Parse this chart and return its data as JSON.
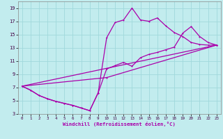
{
  "xlabel": "Windchill (Refroidissement éolien,°C)",
  "xlim": [
    -0.5,
    23.5
  ],
  "ylim": [
    3,
    20
  ],
  "xticks": [
    0,
    1,
    2,
    3,
    4,
    5,
    6,
    7,
    8,
    9,
    10,
    11,
    12,
    13,
    14,
    15,
    16,
    17,
    18,
    19,
    20,
    21,
    22,
    23
  ],
  "yticks": [
    3,
    5,
    7,
    9,
    11,
    13,
    15,
    17,
    19
  ],
  "bg_color": "#c2ecee",
  "grid_color": "#a0d8dc",
  "line_color": "#aa00aa",
  "line1_x": [
    0,
    1,
    2,
    3,
    4,
    5,
    6,
    7,
    8,
    9,
    10,
    11,
    12,
    13,
    14,
    15,
    16,
    17,
    18,
    19,
    20,
    21,
    22,
    23
  ],
  "line1_y": [
    7.2,
    6.6,
    5.8,
    5.3,
    4.9,
    4.6,
    4.3,
    3.9,
    3.5,
    6.2,
    14.5,
    16.8,
    17.2,
    19.0,
    17.2,
    17.0,
    17.5,
    16.3,
    15.3,
    14.7,
    13.8,
    13.5,
    13.4,
    13.4
  ],
  "line2_x": [
    0,
    1,
    2,
    3,
    4,
    5,
    6,
    7,
    8,
    9,
    10,
    11,
    12,
    13,
    14,
    15,
    16,
    17,
    18,
    19,
    20,
    21,
    22,
    23
  ],
  "line2_y": [
    7.2,
    6.6,
    5.8,
    5.3,
    4.9,
    4.6,
    4.3,
    3.9,
    3.5,
    6.2,
    9.8,
    10.3,
    10.8,
    10.2,
    11.5,
    12.0,
    12.3,
    12.7,
    13.1,
    15.2,
    16.2,
    14.7,
    13.8,
    13.4
  ],
  "line3_x": [
    0,
    23
  ],
  "line3_y": [
    7.2,
    13.4
  ],
  "line4_x": [
    0,
    10,
    23
  ],
  "line4_y": [
    7.2,
    8.5,
    13.4
  ]
}
